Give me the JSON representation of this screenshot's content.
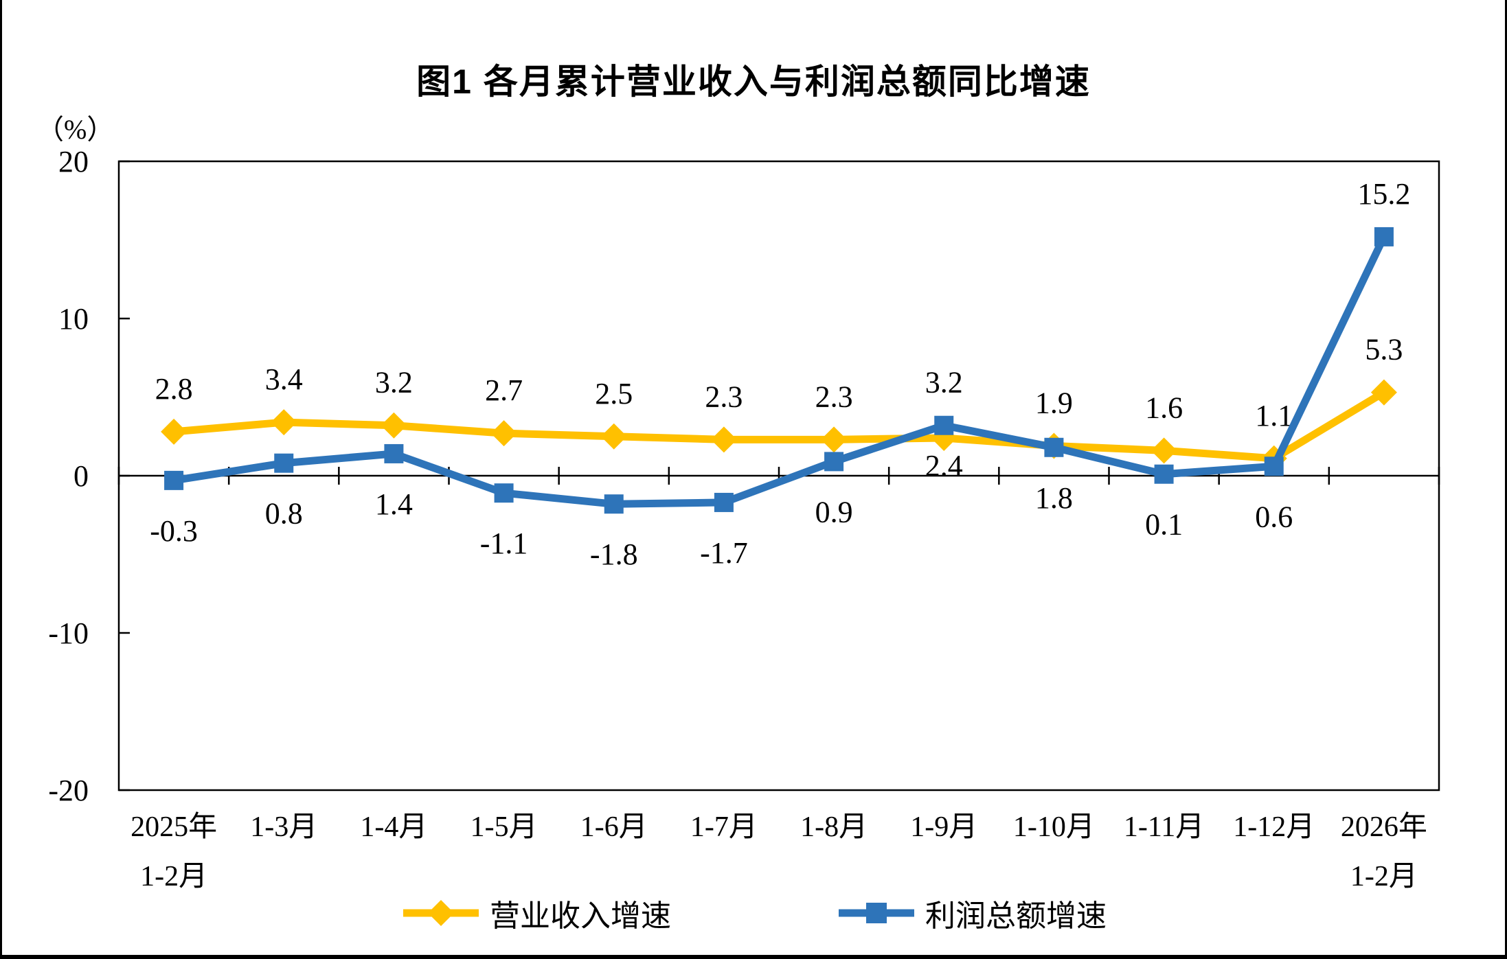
{
  "chart_data": {
    "type": "line",
    "title": "图1  各月累计营业收入与利润总额同比增速",
    "unit_label": "（%）",
    "categories": [
      "2025年\n1-2月",
      "1-3月",
      "1-4月",
      "1-5月",
      "1-6月",
      "1-7月",
      "1-8月",
      "1-9月",
      "1-10月",
      "1-11月",
      "1-12月",
      "2026年\n1-2月"
    ],
    "y_axis": {
      "min": -20,
      "max": 20,
      "step": 10,
      "ticks": [
        20,
        10,
        0,
        -10,
        -20
      ]
    },
    "grid": false,
    "legend_position": "bottom",
    "series": [
      {
        "name": "营业收入增速",
        "marker": "diamond",
        "color": "#FFC000",
        "values": [
          2.8,
          3.4,
          3.2,
          2.7,
          2.5,
          2.3,
          2.3,
          2.4,
          1.9,
          1.6,
          1.1,
          5.3
        ],
        "label_positions": [
          "above",
          "above",
          "above",
          "above",
          "above",
          "above",
          "above",
          "below",
          "above",
          "above",
          "above",
          "above"
        ]
      },
      {
        "name": "利润总额增速",
        "marker": "square",
        "color": "#2E74B9",
        "values": [
          -0.3,
          0.8,
          1.4,
          -1.1,
          -1.8,
          -1.7,
          0.9,
          3.2,
          1.8,
          0.1,
          0.6,
          15.2
        ],
        "label_positions": [
          "below",
          "below",
          "below",
          "below",
          "below",
          "below",
          "below",
          "above",
          "below",
          "below",
          "below",
          "above"
        ]
      }
    ]
  }
}
